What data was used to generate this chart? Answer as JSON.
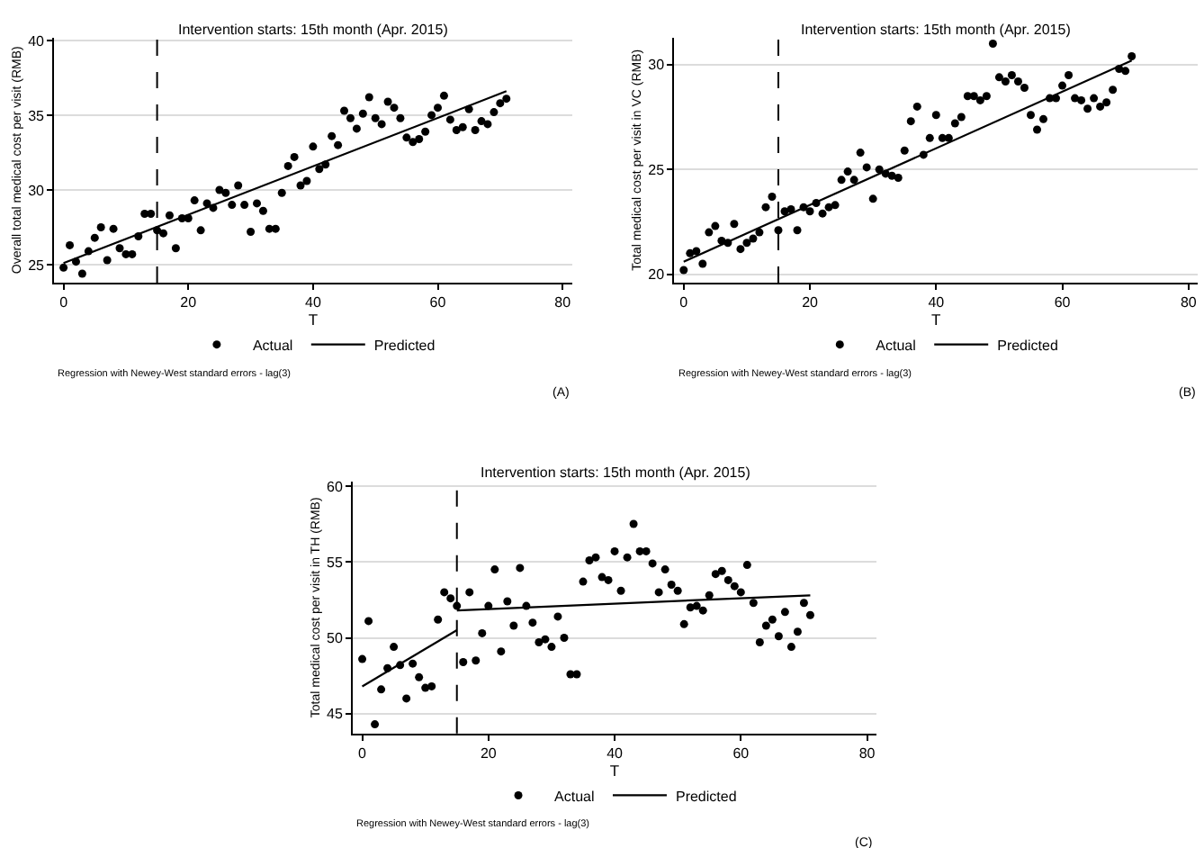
{
  "chart_data": [
    {
      "type": "scatter",
      "title": "Intervention starts: 15th month (Apr. 2015)",
      "xlabel": "T",
      "ylabel": "Overall total medical cost per visit (RMB)",
      "annotations": [
        "Regression with Newey-West standard errors - lag(3)",
        "(A)"
      ],
      "x": [
        0,
        1,
        2,
        3,
        4,
        5,
        6,
        7,
        8,
        9,
        10,
        11,
        12,
        13,
        14,
        15,
        16,
        17,
        18,
        19,
        20,
        21,
        22,
        23,
        24,
        25,
        26,
        27,
        28,
        29,
        30,
        31,
        32,
        33,
        34,
        35,
        36,
        37,
        38,
        39,
        40,
        41,
        42,
        43,
        44,
        45,
        46,
        47,
        48,
        49,
        50,
        51,
        52,
        53,
        54,
        55,
        56,
        57,
        58,
        59,
        60,
        61,
        62,
        63,
        64,
        65,
        66,
        67,
        68,
        69,
        70,
        71
      ],
      "series": [
        {
          "name": "Actual",
          "color": "#000000",
          "marker": "circle",
          "values": [
            24.8,
            26.3,
            25.2,
            24.4,
            25.9,
            26.8,
            27.5,
            25.3,
            27.4,
            26.1,
            25.7,
            25.7,
            26.9,
            28.4,
            28.4,
            27.3,
            27.1,
            28.3,
            26.1,
            28.1,
            28.1,
            29.3,
            27.3,
            29.1,
            28.8,
            30.0,
            29.8,
            29.0,
            30.3,
            29.0,
            27.2,
            29.1,
            28.6,
            27.4,
            27.4,
            29.8,
            31.6,
            32.2,
            30.3,
            30.6,
            32.9,
            31.4,
            31.7,
            33.6,
            33.0,
            35.3,
            34.8,
            34.1,
            35.1,
            36.2,
            34.8,
            34.4,
            35.9,
            35.5,
            34.8,
            33.5,
            33.2,
            33.4,
            33.9,
            35.0,
            35.5,
            36.3,
            34.7,
            34.0,
            34.2,
            35.4,
            34.0,
            34.6,
            34.4,
            35.2,
            35.8,
            36.1
          ]
        },
        {
          "name": "Predicted",
          "type": "line",
          "color": "#000000",
          "marker": "none",
          "x": [
            0,
            71
          ],
          "values": [
            25.1,
            36.6
          ]
        }
      ],
      "xlim": [
        -1.5,
        81.5
      ],
      "ylim": [
        23.8,
        40.2
      ],
      "xticks": [
        0,
        20,
        40,
        60,
        80
      ],
      "yticks": [
        25,
        30,
        35,
        40
      ],
      "ref_lines": [
        {
          "axis": "x",
          "value": 15,
          "label": null,
          "color": "#000000",
          "line_style": "dashed"
        }
      ],
      "grid": "y",
      "legend": "bottom"
    },
    {
      "type": "scatter",
      "title": "Intervention starts: 15th month (Apr. 2015)",
      "xlabel": "T",
      "ylabel": "Total medical cost per visit in VC (RMB)",
      "annotations": [
        "Regression with Newey-West standard errors - lag(3)",
        "(B)"
      ],
      "x": [
        0,
        1,
        2,
        3,
        4,
        5,
        6,
        7,
        8,
        9,
        10,
        11,
        12,
        13,
        14,
        15,
        16,
        17,
        18,
        19,
        20,
        21,
        22,
        23,
        24,
        25,
        26,
        27,
        28,
        29,
        30,
        31,
        32,
        33,
        34,
        35,
        36,
        37,
        38,
        39,
        40,
        41,
        42,
        43,
        44,
        45,
        46,
        47,
        48,
        49,
        50,
        51,
        52,
        53,
        54,
        55,
        56,
        57,
        58,
        59,
        60,
        61,
        62,
        63,
        64,
        65,
        66,
        67,
        68,
        69,
        70,
        71
      ],
      "series": [
        {
          "name": "Actual",
          "color": "#000000",
          "marker": "circle",
          "values": [
            20.2,
            21.0,
            21.1,
            20.5,
            22.0,
            22.3,
            21.6,
            21.5,
            22.4,
            21.2,
            21.5,
            21.7,
            22.0,
            23.2,
            23.7,
            22.1,
            23.0,
            23.1,
            22.1,
            23.2,
            23.0,
            23.4,
            22.9,
            23.2,
            23.3,
            24.5,
            24.9,
            24.5,
            25.8,
            25.1,
            23.6,
            25.0,
            24.8,
            24.7,
            24.6,
            25.9,
            27.3,
            28.0,
            25.7,
            26.5,
            27.6,
            26.5,
            26.5,
            27.2,
            27.5,
            28.5,
            28.5,
            28.3,
            28.5,
            31.0,
            29.4,
            29.2,
            29.5,
            29.2,
            28.9,
            27.6,
            26.9,
            27.4,
            28.4,
            28.4,
            29.0,
            29.5,
            28.4,
            28.3,
            27.9,
            28.4,
            28.0,
            28.2,
            28.8,
            29.8,
            29.7,
            30.4
          ]
        },
        {
          "name": "Predicted",
          "type": "line",
          "color": "#000000",
          "marker": "none",
          "x": [
            0,
            71
          ],
          "values": [
            20.6,
            30.2
          ]
        }
      ],
      "xlim": [
        -1.5,
        81.5
      ],
      "ylim": [
        19.6,
        31.3
      ],
      "xticks": [
        0,
        20,
        40,
        60,
        80
      ],
      "yticks": [
        20,
        25,
        30
      ],
      "ref_lines": [
        {
          "axis": "x",
          "value": 15,
          "label": null,
          "color": "#000000",
          "line_style": "dashed"
        }
      ],
      "grid": "y",
      "legend": "bottom"
    },
    {
      "type": "scatter",
      "title": "Intervention starts: 15th month (Apr. 2015)",
      "xlabel": "T",
      "ylabel": "Total medical cost per visit in TH (RMB)",
      "annotations": [
        "Regression with Newey-West standard errors - lag(3)",
        "(C)"
      ],
      "x": [
        0,
        1,
        2,
        3,
        4,
        5,
        6,
        7,
        8,
        9,
        10,
        11,
        12,
        13,
        14,
        15,
        16,
        17,
        18,
        19,
        20,
        21,
        22,
        23,
        24,
        25,
        26,
        27,
        28,
        29,
        30,
        31,
        32,
        33,
        34,
        35,
        36,
        37,
        38,
        39,
        40,
        41,
        42,
        43,
        44,
        45,
        46,
        47,
        48,
        49,
        50,
        51,
        52,
        53,
        54,
        55,
        56,
        57,
        58,
        59,
        60,
        61,
        62,
        63,
        64,
        65,
        66,
        67,
        68,
        69,
        70,
        71
      ],
      "series": [
        {
          "name": "Actual",
          "color": "#000000",
          "marker": "circle",
          "values": [
            48.6,
            51.1,
            44.3,
            46.6,
            48.0,
            49.4,
            48.2,
            46.0,
            48.3,
            47.4,
            46.7,
            46.8,
            51.2,
            53.0,
            52.6,
            52.1,
            48.4,
            53.0,
            48.5,
            50.3,
            52.1,
            54.5,
            49.1,
            52.4,
            50.8,
            54.6,
            52.1,
            51.0,
            49.7,
            49.9,
            49.4,
            51.4,
            50.0,
            47.6,
            47.6,
            53.7,
            55.1,
            55.3,
            54.0,
            53.8,
            55.7,
            53.1,
            55.3,
            57.5,
            55.7,
            55.7,
            54.9,
            53.0,
            54.5,
            53.5,
            53.1,
            50.9,
            52.0,
            52.1,
            51.8,
            52.8,
            54.2,
            54.4,
            53.8,
            53.4,
            53.0,
            54.8,
            52.3,
            49.7,
            50.8,
            51.2,
            50.1,
            51.7,
            49.4,
            50.4,
            52.3,
            51.5
          ]
        },
        {
          "name": "Predicted",
          "type": "line",
          "color": "#000000",
          "marker": "none",
          "x": [
            0,
            15
          ],
          "values": [
            46.8,
            50.5
          ]
        },
        {
          "type": "line",
          "color": "#000000",
          "marker": "none",
          "x": [
            15,
            71
          ],
          "values": [
            51.8,
            52.8
          ]
        }
      ],
      "xlim": [
        -1.5,
        81.5
      ],
      "ylim": [
        43.7,
        60.3
      ],
      "xticks": [
        0,
        20,
        40,
        60,
        80
      ],
      "yticks": [
        45,
        50,
        55,
        60
      ],
      "ref_lines": [
        {
          "axis": "x",
          "value": 15,
          "label": null,
          "color": "#000000",
          "line_style": "dashed"
        }
      ],
      "grid": "y",
      "legend": "bottom"
    }
  ]
}
